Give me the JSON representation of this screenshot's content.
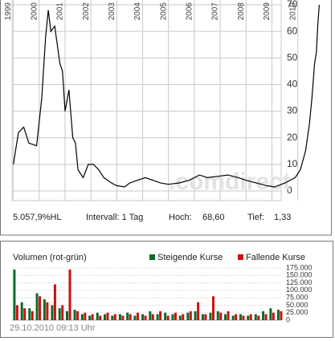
{
  "chart_data": [
    {
      "type": "line",
      "color": "#000000",
      "watermark": ".comdirect",
      "grid": true,
      "x": [
        1999.0,
        1999.2,
        1999.4,
        1999.6,
        1999.9,
        2000.1,
        2000.25,
        2000.35,
        2000.45,
        2000.6,
        2000.8,
        2000.9,
        2001.0,
        2001.15,
        2001.3,
        2001.4,
        2001.5,
        2001.7,
        2001.9,
        2002.1,
        2002.3,
        2002.5,
        2002.8,
        2003.0,
        2003.3,
        2003.5,
        2003.8,
        2004.1,
        2004.4,
        2004.7,
        2005.0,
        2005.4,
        2005.8,
        2006.2,
        2006.5,
        2006.9,
        2007.3,
        2007.7,
        2008.0,
        2008.4,
        2008.8,
        2009.1,
        2009.5,
        2009.9,
        2010.1,
        2010.3,
        2010.45,
        2010.55,
        2010.65,
        2010.72,
        2010.78,
        2010.83
      ],
      "values": [
        10,
        22,
        24,
        18,
        17,
        35,
        58,
        68,
        60,
        62,
        48,
        45,
        30,
        38,
        20,
        18,
        8,
        5,
        10,
        10,
        8,
        5,
        3,
        2,
        1.5,
        3,
        4,
        5,
        4,
        3,
        2.5,
        3,
        4,
        6,
        5,
        5.5,
        6,
        5,
        4,
        3,
        2,
        1.5,
        3,
        5,
        8,
        15,
        25,
        35,
        48,
        52,
        63,
        70
      ],
      "xlim": [
        1998.95,
        2010.85
      ],
      "xticks": [
        1999,
        2000,
        2001,
        2002,
        2003,
        2004,
        2005,
        2006,
        2007,
        2008,
        2009,
        2010
      ],
      "ylim": [
        0,
        70
      ],
      "yticks": [
        0,
        10,
        20,
        30,
        40,
        50,
        60,
        70
      ]
    },
    {
      "type": "bar",
      "title": "Volumen (rot-grün)",
      "grid": true,
      "x": [
        1999.0,
        1999.33,
        1999.67,
        2000.0,
        2000.33,
        2000.67,
        2001.0,
        2001.33,
        2001.67,
        2002.0,
        2002.33,
        2002.67,
        2003.0,
        2003.33,
        2003.67,
        2004.0,
        2004.33,
        2004.67,
        2005.0,
        2005.33,
        2005.67,
        2006.0,
        2006.33,
        2006.67,
        2007.0,
        2007.33,
        2007.67,
        2008.0,
        2008.33,
        2008.67,
        2009.0,
        2009.33,
        2009.67,
        2010.0,
        2010.33,
        2010.67
      ],
      "series": [
        {
          "name": "Steigende Kurse",
          "color": "#0a6b2a",
          "values": [
            170000,
            60000,
            40000,
            90000,
            70000,
            50000,
            40000,
            30000,
            35000,
            20000,
            15000,
            25000,
            20000,
            15000,
            20000,
            25000,
            15000,
            20000,
            30000,
            20000,
            25000,
            20000,
            15000,
            25000,
            30000,
            20000,
            25000,
            30000,
            20000,
            15000,
            20000,
            15000,
            20000,
            30000,
            40000,
            35000
          ]
        },
        {
          "name": "Fallende Kurse",
          "color": "#cc1111",
          "values": [
            50000,
            40000,
            30000,
            80000,
            60000,
            120000,
            50000,
            170000,
            30000,
            25000,
            20000,
            15000,
            25000,
            20000,
            15000,
            20000,
            25000,
            15000,
            20000,
            30000,
            15000,
            25000,
            20000,
            30000,
            60000,
            20000,
            80000,
            25000,
            30000,
            20000,
            15000,
            20000,
            15000,
            20000,
            25000,
            30000
          ]
        }
      ],
      "xlim": [
        1998.95,
        2010.85
      ],
      "ylim": [
        0,
        175000
      ],
      "yticks": [
        0,
        {
          "value": 25000,
          "label": "25.000"
        },
        {
          "value": 50000,
          "label": "50.000"
        },
        {
          "value": 75000,
          "label": "75.000"
        },
        {
          "value": 100000,
          "label": "100.000"
        },
        {
          "value": 125000,
          "label": "125.000"
        },
        {
          "value": 150000,
          "label": "150.000"
        },
        {
          "value": 175000,
          "label": "175.000"
        }
      ]
    }
  ],
  "info": {
    "performance": "5.057,9%HL",
    "interval": "Intervall: 1 Tag",
    "high_label": "Hoch:",
    "high": "68,60",
    "low_label": "Tief:",
    "low": "1,33"
  },
  "timestamp": "29.10.2010 09:13 Uhr"
}
